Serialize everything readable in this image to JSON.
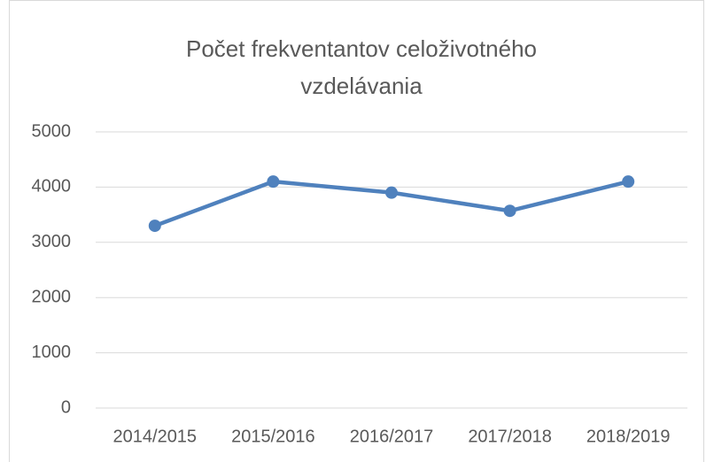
{
  "chart_data": {
    "type": "line",
    "title": "Počet frekventantov celoživotného vzdelávania",
    "categories": [
      "2014/2015",
      "2015/2016",
      "2016/2017",
      "2017/2018",
      "2018/2019"
    ],
    "series": [
      {
        "name": "Počet frekventantov",
        "color": "#4f81bd",
        "values": [
          3300,
          4100,
          3900,
          3570,
          4100
        ]
      }
    ],
    "ylim": [
      0,
      5000
    ],
    "yticks": [
      0,
      1000,
      2000,
      3000,
      4000,
      5000
    ],
    "grid": true
  }
}
